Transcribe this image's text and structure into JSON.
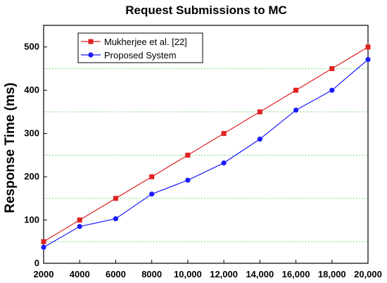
{
  "chart_data": {
    "type": "line",
    "title": "Request Submissions to MC",
    "xlabel": "",
    "ylabel": "Response Time (ms)",
    "x": [
      2000,
      4000,
      6000,
      8000,
      10000,
      12000,
      14000,
      16000,
      18000,
      20000
    ],
    "x_tick_labels": [
      "2000",
      "4000",
      "6000",
      "8000",
      "10,000",
      "12,000",
      "14,000",
      "16,000",
      "18,000",
      "20,000"
    ],
    "y_ticks": [
      0,
      100,
      200,
      300,
      400,
      500
    ],
    "xlim": [
      2000,
      20000
    ],
    "ylim": [
      0,
      550
    ],
    "grid": "horizontal dotted green",
    "legend_position": "top-left",
    "series": [
      {
        "name": "Mukherjee et al. [22]",
        "color": "#e02020",
        "marker": "square",
        "values": [
          50,
          100,
          150,
          200,
          250,
          300,
          350,
          400,
          450,
          500
        ]
      },
      {
        "name": "Proposed System",
        "color": "#1a1aff",
        "marker": "circle",
        "values": [
          37,
          85,
          103,
          160,
          192,
          232,
          287,
          354,
          400,
          471
        ]
      }
    ]
  }
}
